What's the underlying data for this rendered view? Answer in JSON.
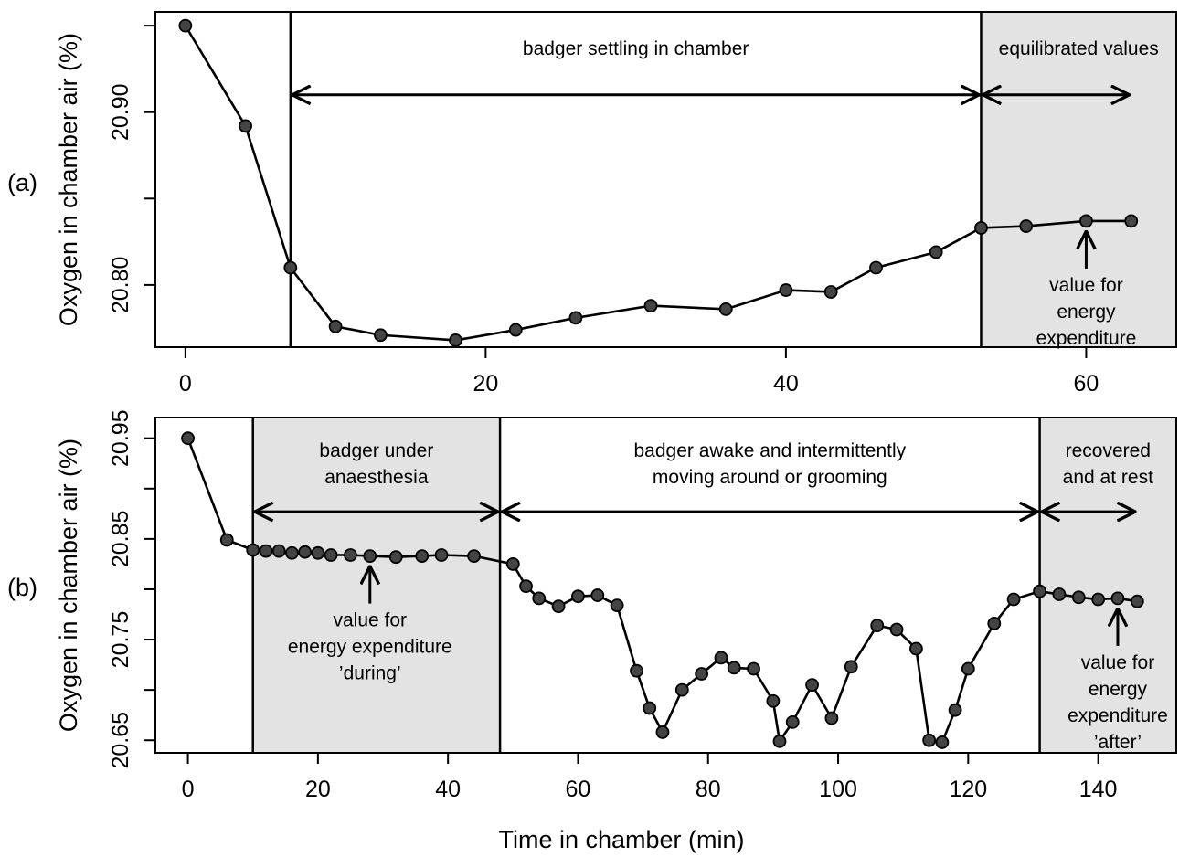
{
  "chart_data": [
    {
      "panel_label": "(a)",
      "type": "line",
      "ylabel": "Oxygen in chamber air (%)",
      "xlabel": "",
      "xlim": [
        -2,
        66
      ],
      "ylim": [
        20.764,
        20.958
      ],
      "xticks": [
        "0",
        "20",
        "40",
        "60"
      ],
      "yticks": [
        "20.80",
        "20.90"
      ],
      "yminor": [
        20.85
      ],
      "y_minor_ticks": [
        20.95
      ],
      "x": [
        0,
        4,
        7,
        10,
        13,
        18,
        22,
        26,
        31,
        36,
        40,
        43,
        46,
        50,
        53,
        56,
        60,
        63
      ],
      "y": [
        20.95,
        20.892,
        20.81,
        20.776,
        20.771,
        20.768,
        20.774,
        20.781,
        20.788,
        20.786,
        20.797,
        20.796,
        20.81,
        20.819,
        20.833,
        20.834,
        20.837,
        20.837
      ],
      "shaded": [
        [
          53,
          66
        ]
      ],
      "vlines": [
        7,
        53
      ],
      "arrows": [
        {
          "x1": 7,
          "x2": 53,
          "y": 20.91,
          "label": "badger settling in chamber"
        },
        {
          "x1": 53,
          "x2": 63,
          "y": 20.91,
          "label": "equilibrated values"
        }
      ],
      "point_annotation": {
        "x": 60,
        "lines": [
          "value for",
          "energy",
          "expenditure"
        ]
      }
    },
    {
      "panel_label": "(b)",
      "type": "line",
      "ylabel": "Oxygen in chamber air (%)",
      "xlabel": "Time in chamber (min)",
      "xlim": [
        -5,
        152
      ],
      "ylim": [
        20.6375,
        20.9706
      ],
      "xticks": [
        "0",
        "20",
        "40",
        "60",
        "80",
        "100",
        "120",
        "140"
      ],
      "yticks": [
        "20.65",
        "20.75",
        "20.85",
        "20.95"
      ],
      "yminor": [
        20.7,
        20.8,
        20.9
      ],
      "x": [
        0,
        6,
        10,
        12,
        14,
        16,
        18,
        20,
        22,
        25,
        28,
        32,
        36,
        39,
        44,
        50,
        52,
        54,
        57,
        60,
        63,
        66,
        69,
        71,
        73,
        76,
        79,
        82,
        84,
        87,
        90,
        91,
        93,
        96,
        99,
        102,
        106,
        109,
        112,
        114,
        116,
        118,
        120,
        124,
        127,
        131,
        134,
        137,
        140,
        143,
        146
      ],
      "y": [
        20.95,
        20.849,
        20.839,
        20.838,
        20.838,
        20.836,
        20.837,
        20.836,
        20.834,
        20.834,
        20.833,
        20.832,
        20.833,
        20.834,
        20.833,
        20.825,
        20.803,
        20.791,
        20.783,
        20.793,
        20.794,
        20.784,
        20.719,
        20.682,
        20.658,
        20.7,
        20.716,
        20.732,
        20.722,
        20.721,
        20.689,
        20.649,
        20.668,
        20.705,
        20.672,
        20.723,
        20.764,
        20.76,
        20.741,
        20.65,
        20.648,
        20.68,
        20.721,
        20.766,
        20.79,
        20.798,
        20.795,
        20.792,
        20.79,
        20.791,
        20.788
      ],
      "shaded": [
        [
          10,
          48
        ],
        [
          131,
          152
        ]
      ],
      "vlines": [
        10,
        48,
        131
      ],
      "arrows": [
        {
          "x1": 10,
          "x2": 48,
          "y": 20.877,
          "label": [
            "badger under",
            "anaesthesia"
          ]
        },
        {
          "x1": 48,
          "x2": 131,
          "y": 20.877,
          "label": [
            "badger awake and intermittently",
            "moving around or grooming"
          ]
        },
        {
          "x1": 131,
          "x2": 146,
          "y": 20.877,
          "label": [
            "recovered",
            "and at rest"
          ]
        }
      ],
      "point_annotations": [
        {
          "x": 28,
          "lines": [
            "value for",
            "energy expenditure",
            "’during’"
          ]
        },
        {
          "x": 143,
          "lines": [
            "value for",
            "energy",
            "expenditure",
            "’after’"
          ]
        }
      ]
    }
  ]
}
